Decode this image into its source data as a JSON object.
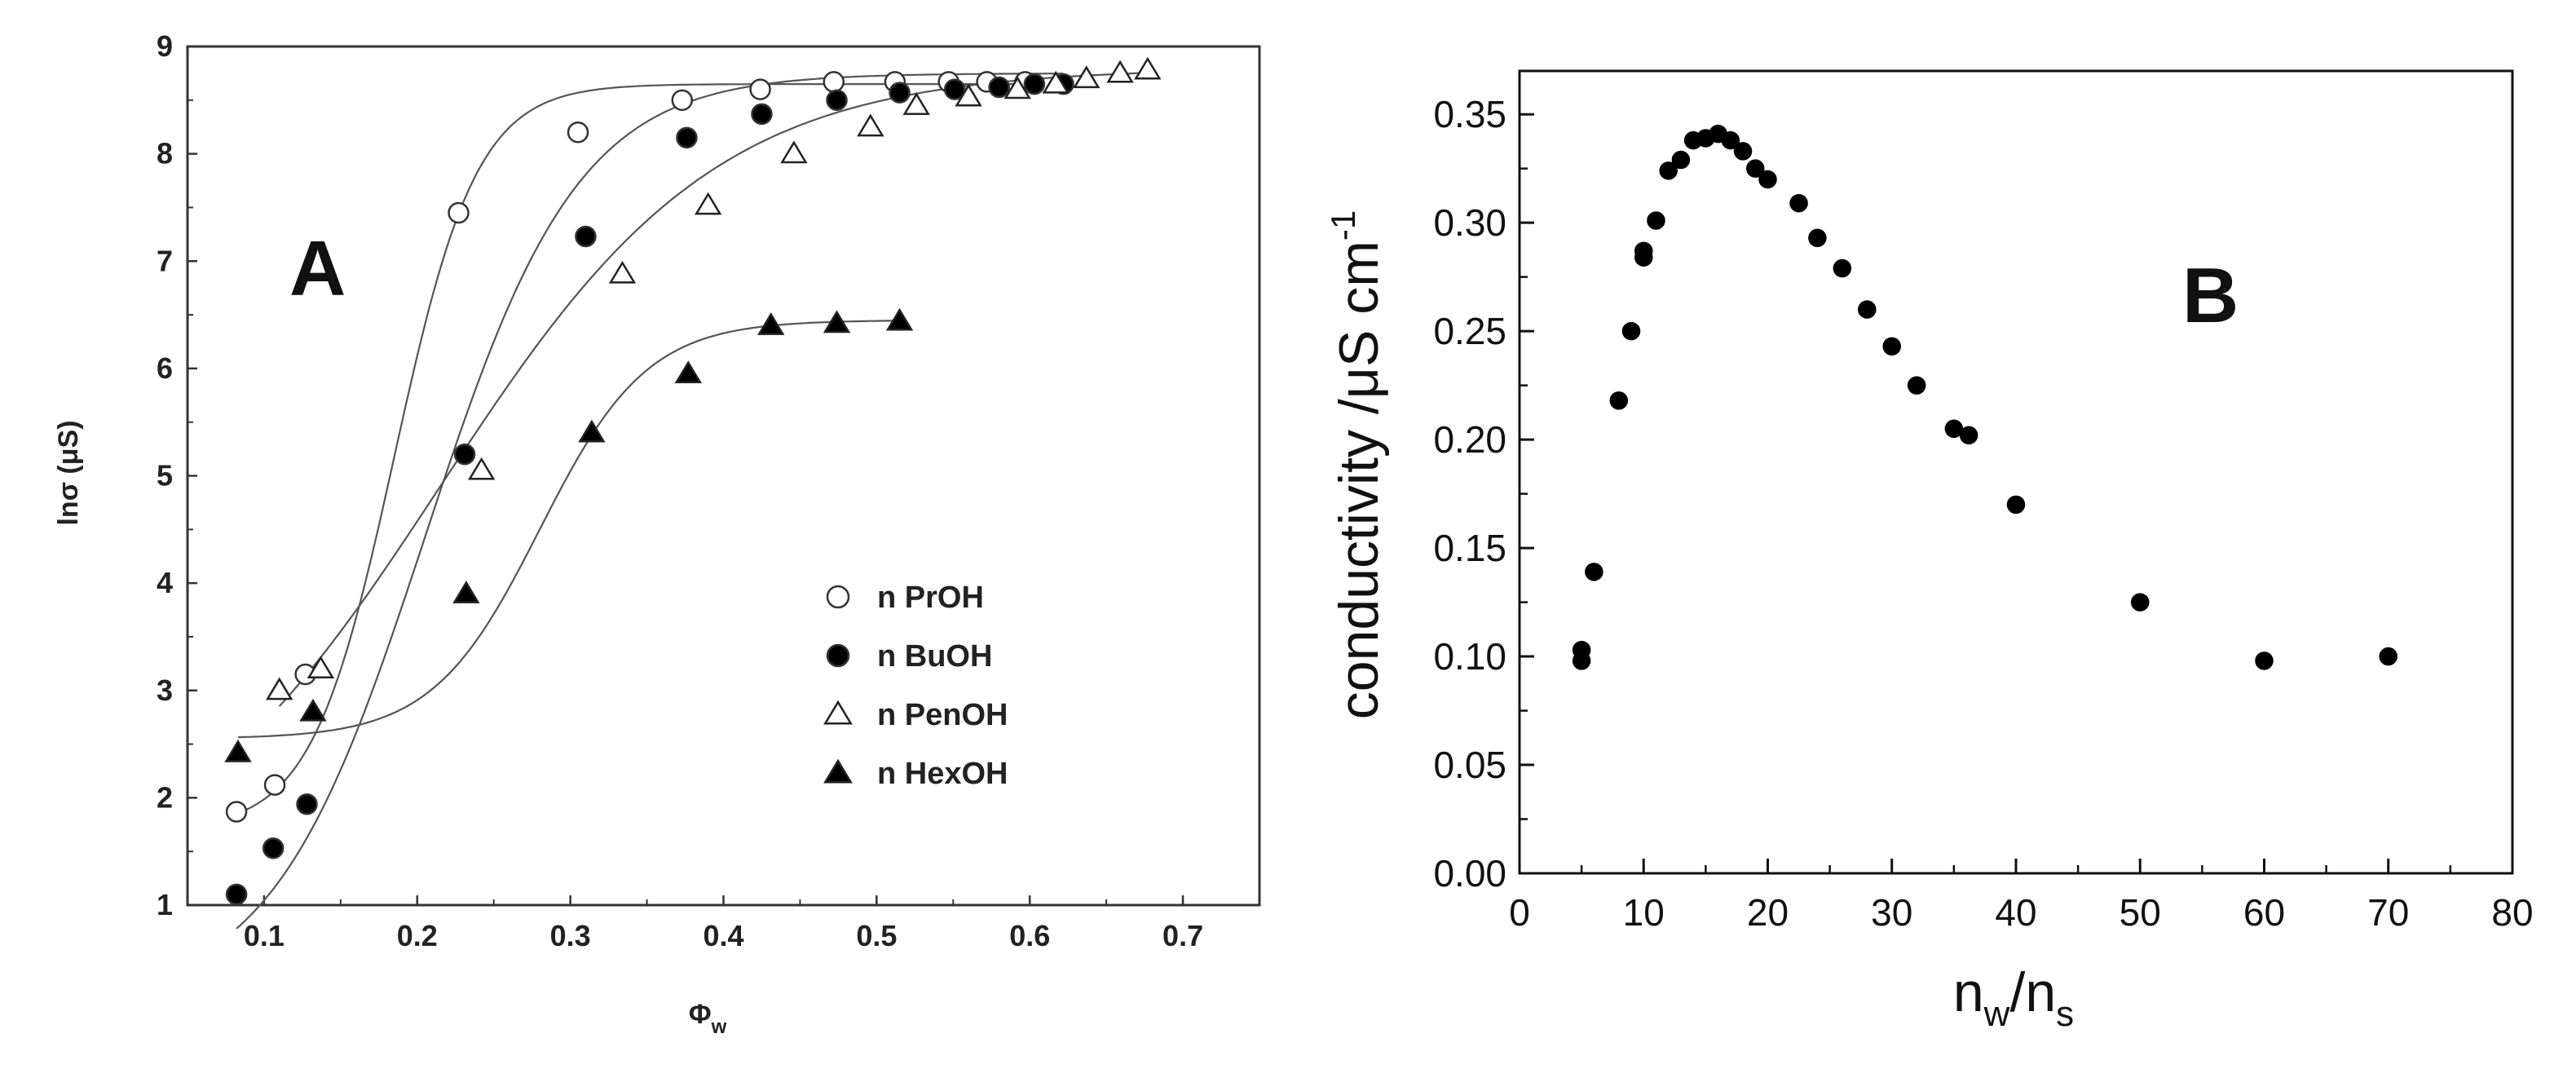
{
  "chart_data": [
    {
      "type": "scatter",
      "panel_label": "A",
      "xlabel": "Φ",
      "xlabel_sub": "w",
      "ylabel": "lnσ (μS)",
      "xlim": [
        0.05,
        0.75
      ],
      "ylim": [
        1,
        9
      ],
      "xticks": [
        0.1,
        0.2,
        0.3,
        0.4,
        0.5,
        0.6,
        0.7
      ],
      "xtick_labels": [
        "0.1",
        "0.2",
        "0.3",
        "0.4",
        "0.5",
        "0.6",
        "0.7"
      ],
      "yticks": [
        1,
        2,
        3,
        4,
        5,
        6,
        7,
        8,
        9
      ],
      "ytick_labels": [
        "1",
        "2",
        "3",
        "4",
        "5",
        "6",
        "7",
        "8",
        "9"
      ],
      "legend_position": "lower-right",
      "series": [
        {
          "name": "n PrOH",
          "marker": "open-circle",
          "x": [
            0.082,
            0.107,
            0.127,
            0.227,
            0.305,
            0.373,
            0.424,
            0.472,
            0.512,
            0.547,
            0.572,
            0.597
          ],
          "y": [
            1.87,
            2.12,
            3.15,
            7.45,
            8.2,
            8.5,
            8.6,
            8.67,
            8.67,
            8.67,
            8.67,
            8.67
          ],
          "curve": {
            "kind": "logistic",
            "A1": 1.7,
            "A2": 8.65,
            "x0": 0.185,
            "dx": 0.027
          }
        },
        {
          "name": "n BuOH",
          "marker": "filled-circle",
          "x": [
            0.082,
            0.106,
            0.128,
            0.231,
            0.31,
            0.376,
            0.425,
            0.474,
            0.515,
            0.551,
            0.58,
            0.603,
            0.622
          ],
          "y": [
            1.1,
            1.53,
            1.94,
            5.2,
            7.23,
            8.15,
            8.37,
            8.5,
            8.57,
            8.6,
            8.62,
            8.65,
            8.65
          ],
          "curve": {
            "kind": "logistic",
            "A1": 0.1,
            "A2": 8.75,
            "x0": 0.205,
            "dx": 0.05
          }
        },
        {
          "name": "n PenOH",
          "marker": "open-triangle",
          "x": [
            0.11,
            0.137,
            0.242,
            0.334,
            0.39,
            0.446,
            0.496,
            0.526,
            0.56,
            0.592,
            0.617,
            0.637,
            0.659,
            0.677
          ],
          "y": [
            3.0,
            3.2,
            5.05,
            6.88,
            7.52,
            8.0,
            8.25,
            8.45,
            8.53,
            8.6,
            8.65,
            8.7,
            8.75,
            8.78
          ],
          "curve": {
            "kind": "logistic",
            "A1": 1.0,
            "A2": 8.8,
            "x0": 0.215,
            "dx": 0.09
          }
        },
        {
          "name": "n HexOH",
          "marker": "filled-triangle",
          "x": [
            0.083,
            0.132,
            0.232,
            0.314,
            0.377,
            0.431,
            0.474,
            0.515
          ],
          "y": [
            2.42,
            2.8,
            3.9,
            5.4,
            5.95,
            6.4,
            6.42,
            6.44
          ],
          "curve": {
            "kind": "logistic",
            "A1": 2.55,
            "A2": 6.45,
            "x0": 0.28,
            "dx": 0.035
          }
        }
      ]
    },
    {
      "type": "scatter",
      "panel_label": "B",
      "xlabel": "n",
      "xlabel_sub1": "w",
      "xlabel_mid": "/n",
      "xlabel_sub2": "s",
      "ylabel": "conductivity /μS cm",
      "ylabel_sup": "-1",
      "xlim": [
        0,
        80
      ],
      "ylim": [
        0,
        0.37
      ],
      "xticks": [
        0,
        10,
        20,
        30,
        40,
        50,
        60,
        70,
        80
      ],
      "xtick_labels": [
        "0",
        "10",
        "20",
        "30",
        "40",
        "50",
        "60",
        "70",
        "80"
      ],
      "yticks": [
        0,
        0.05,
        0.1,
        0.15,
        0.2,
        0.25,
        0.3,
        0.35
      ],
      "ytick_labels": [
        "0.00",
        "0.05",
        "0.10",
        "0.15",
        "0.20",
        "0.25",
        "0.30",
        "0.35"
      ],
      "series": [
        {
          "name": "conductivity",
          "marker": "filled-circle",
          "x": [
            5,
            5,
            6,
            8,
            9,
            10,
            10,
            11,
            12,
            13,
            14,
            15,
            16,
            17,
            18,
            19,
            20,
            22.5,
            24,
            26,
            28,
            30,
            32,
            35,
            36.2,
            40,
            50,
            60,
            70
          ],
          "y": [
            0.098,
            0.103,
            0.139,
            0.218,
            0.25,
            0.284,
            0.287,
            0.301,
            0.324,
            0.329,
            0.338,
            0.339,
            0.341,
            0.338,
            0.333,
            0.325,
            0.32,
            0.309,
            0.293,
            0.279,
            0.26,
            0.243,
            0.225,
            0.205,
            0.202,
            0.17,
            0.125,
            0.098,
            0.1
          ]
        }
      ]
    }
  ]
}
